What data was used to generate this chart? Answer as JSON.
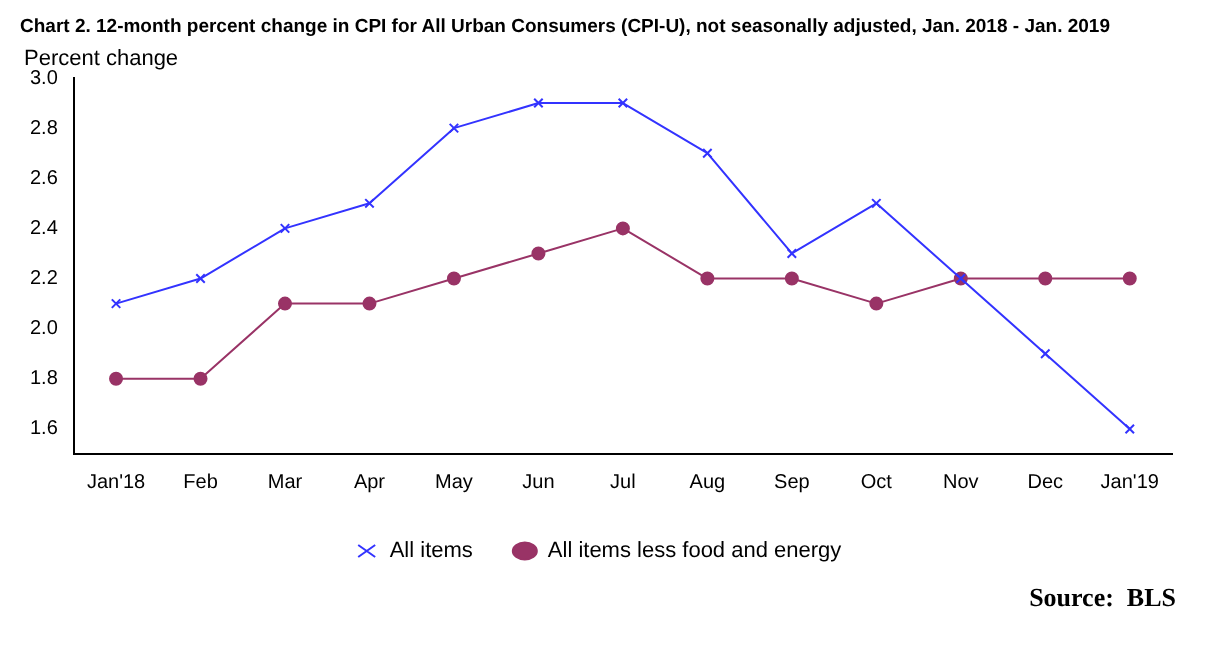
{
  "chart_data": {
    "type": "line",
    "title": "Chart 2. 12-month percent change in CPI for All Urban Consumers (CPI-U), not seasonally adjusted, Jan. 2018 - Jan. 2019",
    "ylabel": "Percent change",
    "categories": [
      "Jan'18",
      "Feb",
      "Mar",
      "Apr",
      "May",
      "Jun",
      "Jul",
      "Aug",
      "Sep",
      "Oct",
      "Nov",
      "Dec",
      "Jan'19"
    ],
    "series": [
      {
        "name": "All items",
        "color": "#3333ff",
        "marker": "cross",
        "values": [
          2.1,
          2.2,
          2.4,
          2.5,
          2.8,
          2.9,
          2.9,
          2.7,
          2.3,
          2.5,
          2.2,
          1.9,
          1.6
        ]
      },
      {
        "name": "All items less food and energy",
        "color": "#993366",
        "marker": "circle",
        "values": [
          1.8,
          1.8,
          2.1,
          2.1,
          2.2,
          2.3,
          2.4,
          2.2,
          2.2,
          2.1,
          2.2,
          2.2,
          2.2
        ]
      }
    ],
    "ylim": [
      1.5,
      3.0
    ],
    "yticks": [
      1.6,
      1.8,
      {
        "value": 2,
        "label": "2.0"
      },
      2.2,
      2.4,
      2.6,
      2.8,
      {
        "value": 3,
        "label": "3.0"
      }
    ],
    "grid": false,
    "legend": "bottom",
    "annotations": [
      "Source:  BLS"
    ]
  }
}
